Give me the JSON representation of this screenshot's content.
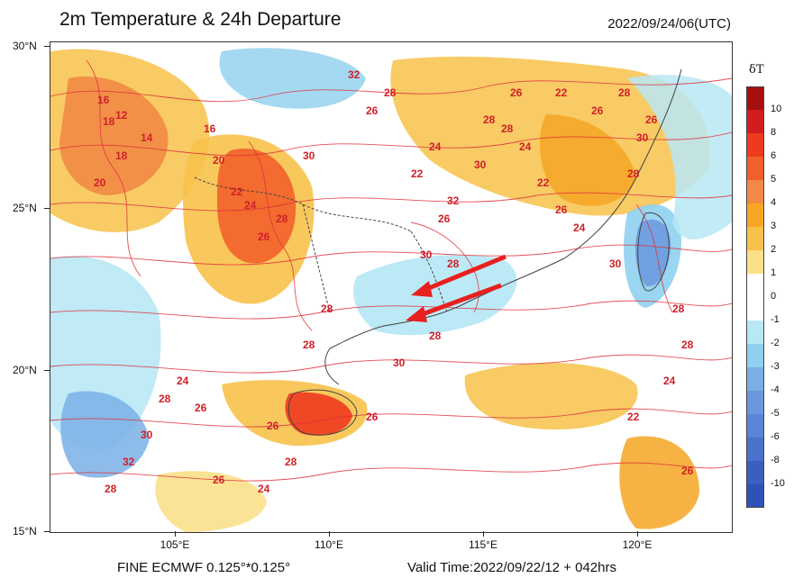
{
  "title": "2m Temperature & 24h Departure",
  "datetime": "2022/09/24/06(UTC)",
  "footer_left": "FINE ECMWF 0.125°*0.125°",
  "footer_right": "Valid Time:2022/09/22/12 + 042hrs",
  "lat_labels": [
    "30°N",
    "25°N",
    "20°N",
    "15°N"
  ],
  "lon_labels": [
    "105°E",
    "110°E",
    "115°E",
    "120°E"
  ],
  "colorbar": {
    "title": "δT",
    "levels": [
      {
        "label": "10",
        "color": "#a50f0f"
      },
      {
        "label": "8",
        "color": "#d01e1e"
      },
      {
        "label": "6",
        "color": "#ee3a1f"
      },
      {
        "label": "5",
        "color": "#f2602a"
      },
      {
        "label": "4",
        "color": "#f28a45"
      },
      {
        "label": "3",
        "color": "#f5a623"
      },
      {
        "label": "2",
        "color": "#f7c24a"
      },
      {
        "label": "1",
        "color": "#fbe08a"
      },
      {
        "label": "0",
        "color": "#ffffff"
      },
      {
        "label": "-1",
        "color": "#ffffff"
      },
      {
        "label": "-2",
        "color": "#b8e8f5"
      },
      {
        "label": "-3",
        "color": "#8fd0ef"
      },
      {
        "label": "-4",
        "color": "#7ab0e6"
      },
      {
        "label": "-5",
        "color": "#6a98de"
      },
      {
        "label": "-6",
        "color": "#5a84d6"
      },
      {
        "label": "-8",
        "color": "#4a72cc"
      },
      {
        "label": "-10",
        "color": "#3b5fc0"
      }
    ],
    "bottom_color": "#2f52b8"
  },
  "contour_labels": [
    "16",
    "18",
    "12",
    "14",
    "18",
    "20",
    "16",
    "20",
    "22",
    "24",
    "26",
    "28",
    "30",
    "32",
    "26",
    "28",
    "22",
    "24",
    "26",
    "28",
    "30",
    "32",
    "28",
    "30",
    "28",
    "26",
    "24",
    "22",
    "26",
    "24",
    "22",
    "26",
    "28",
    "30",
    "28",
    "26",
    "28",
    "28",
    "26",
    "28",
    "24",
    "26",
    "24",
    "26",
    "28",
    "30",
    "32",
    "28",
    "26",
    "30",
    "28",
    "30",
    "28",
    "28",
    "24",
    "22",
    "26"
  ],
  "arrows_color": "#e8201e"
}
